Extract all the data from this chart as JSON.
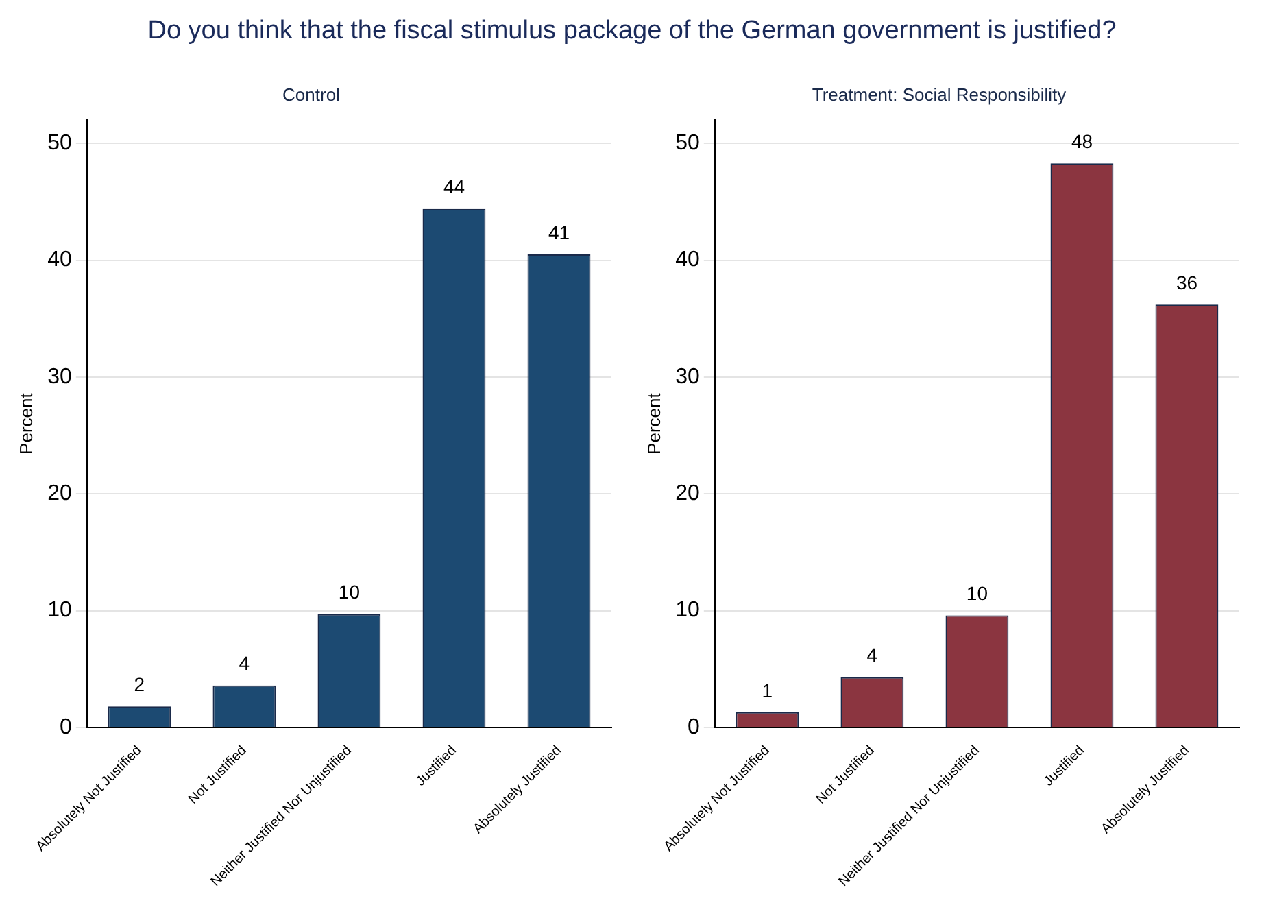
{
  "chart_data": [
    {
      "type": "bar",
      "title": "Do you think that the fiscal stimulus package of the German government is justified?",
      "subtitle": "Control",
      "ylabel": "Percent",
      "categories": [
        "Absolutely Not Justified",
        "Not Justified",
        "Neither Justified Nor Unjustified",
        "Justified",
        "Absolutely Justified"
      ],
      "values": [
        1.8,
        3.6,
        9.7,
        44.4,
        40.5
      ],
      "value_labels": [
        "2",
        "4",
        "10",
        "44",
        "41"
      ],
      "color": "#1c4a72",
      "ylim": [
        0,
        52
      ],
      "yticks": [
        0,
        10,
        20,
        30,
        40,
        50
      ],
      "grid": "y"
    },
    {
      "type": "bar",
      "subtitle": "Treatment: Social Responsibility",
      "ylabel": "Percent",
      "categories": [
        "Absolutely Not Justified",
        "Not Justified",
        "Neither Justified Nor Unjustified",
        "Justified",
        "Absolutely Justified"
      ],
      "values": [
        1.3,
        4.3,
        9.6,
        48.3,
        36.2
      ],
      "value_labels": [
        "1",
        "4",
        "10",
        "48",
        "36"
      ],
      "color": "#8b3540",
      "ylim": [
        0,
        52
      ],
      "yticks": [
        0,
        10,
        20,
        30,
        40,
        50
      ],
      "grid": "y"
    }
  ]
}
